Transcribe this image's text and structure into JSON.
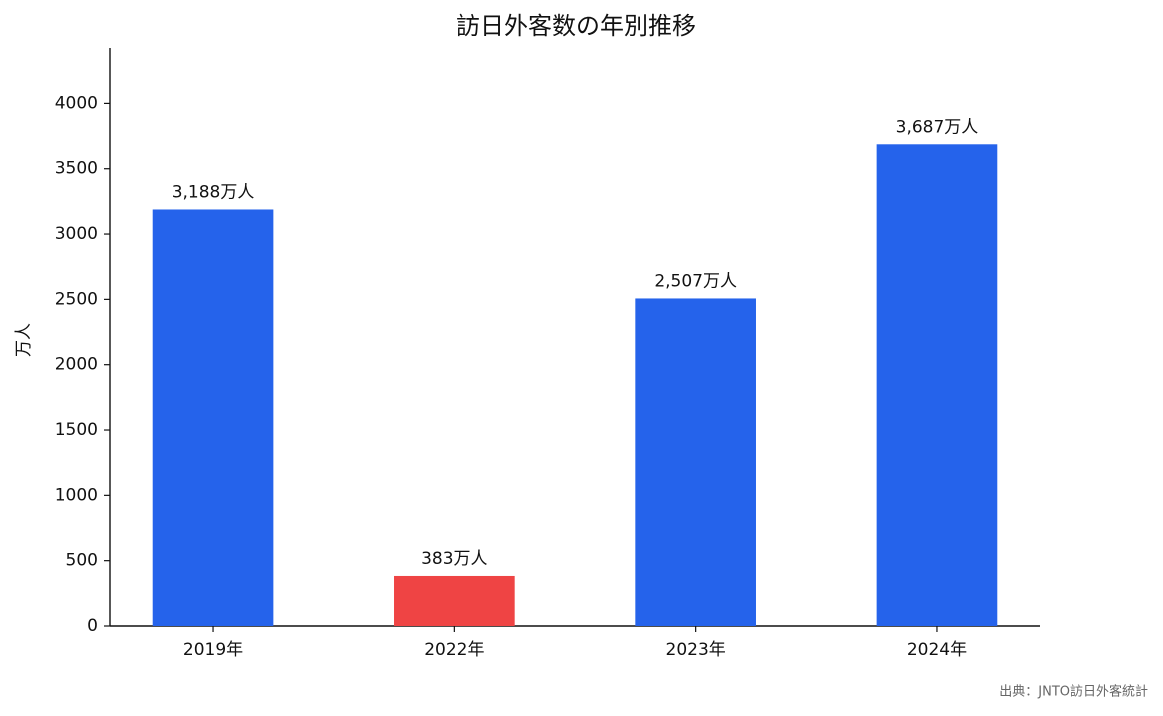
{
  "chart_data": {
    "type": "bar",
    "title": "訪日外客数の年別推移",
    "ylabel": "万人",
    "categories": [
      "2019年",
      "2022年",
      "2023年",
      "2024年"
    ],
    "values": [
      3188,
      383,
      2507,
      3687
    ],
    "value_labels": [
      "3,188万人",
      "383万人",
      "2,507万人",
      "3,687万人"
    ],
    "colors": [
      "#2563eb",
      "#ef4444",
      "#2563eb",
      "#2563eb"
    ],
    "ylim": [
      0,
      4424
    ],
    "yticks": [
      0,
      500,
      1000,
      1500,
      2000,
      2500,
      3000,
      3500,
      4000
    ],
    "grid": false,
    "source": "出典：JNTO訪日外客統計"
  }
}
